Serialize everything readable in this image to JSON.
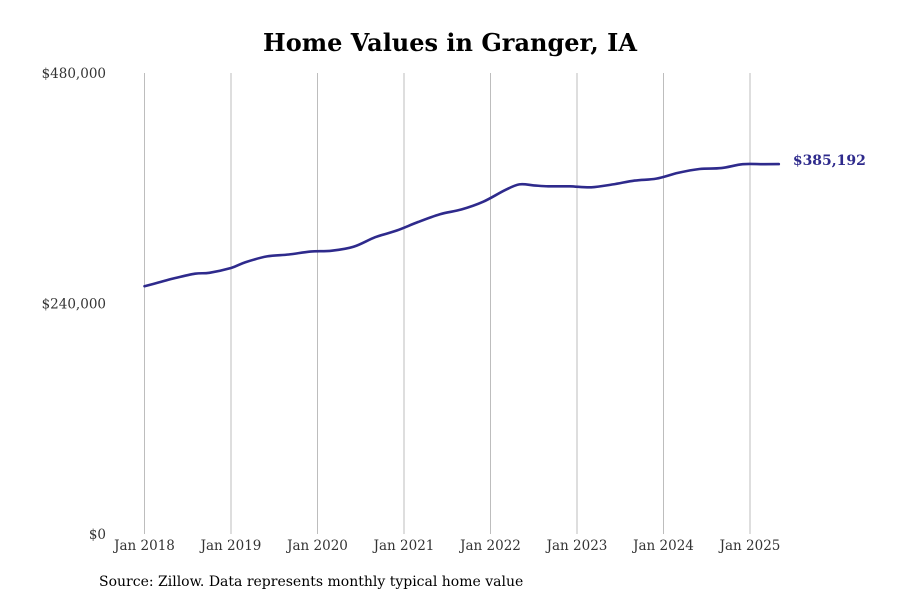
{
  "chart_data": {
    "type": "line",
    "title": "Home Values in Granger, IA",
    "xlabel": "",
    "ylabel": "",
    "ylim": [
      0,
      480000
    ],
    "y_ticks": [
      0,
      240000,
      480000
    ],
    "y_tick_labels": [
      "$0",
      "$240,000",
      "$480,000"
    ],
    "x_ticks": [
      "2018-01",
      "2019-01",
      "2020-01",
      "2021-01",
      "2022-01",
      "2023-01",
      "2024-01",
      "2025-01"
    ],
    "x_tick_labels": [
      "Jan 2018",
      "Jan 2019",
      "Jan 2020",
      "Jan 2021",
      "Jan 2022",
      "Jan 2023",
      "Jan 2024",
      "Jan 2025"
    ],
    "grid": "vertical",
    "end_label": "$385,192",
    "color": "#2e2a8c",
    "series": [
      {
        "x": [
          "2018-01",
          "2018-03",
          "2018-05",
          "2018-08",
          "2018-10",
          "2019-01",
          "2019-03",
          "2019-06",
          "2019-09",
          "2019-12",
          "2020-03",
          "2020-06",
          "2020-09",
          "2020-12",
          "2021-03",
          "2021-06",
          "2021-09",
          "2021-12",
          "2022-03",
          "2022-05",
          "2022-07",
          "2022-09",
          "2022-12",
          "2023-03",
          "2023-06",
          "2023-09",
          "2023-12",
          "2024-03",
          "2024-06",
          "2024-09",
          "2024-12",
          "2025-03",
          "2025-05"
        ],
        "values": [
          258000,
          262000,
          266000,
          271000,
          272000,
          277000,
          283000,
          289000,
          291000,
          294000,
          295000,
          299000,
          309000,
          316000,
          325000,
          333000,
          338000,
          346000,
          358000,
          364000,
          363000,
          362000,
          362000,
          361000,
          364000,
          368000,
          370000,
          376000,
          380000,
          381000,
          385000,
          385000,
          385192
        ]
      }
    ]
  },
  "source": "Source: Zillow. Data represents monthly typical home value"
}
